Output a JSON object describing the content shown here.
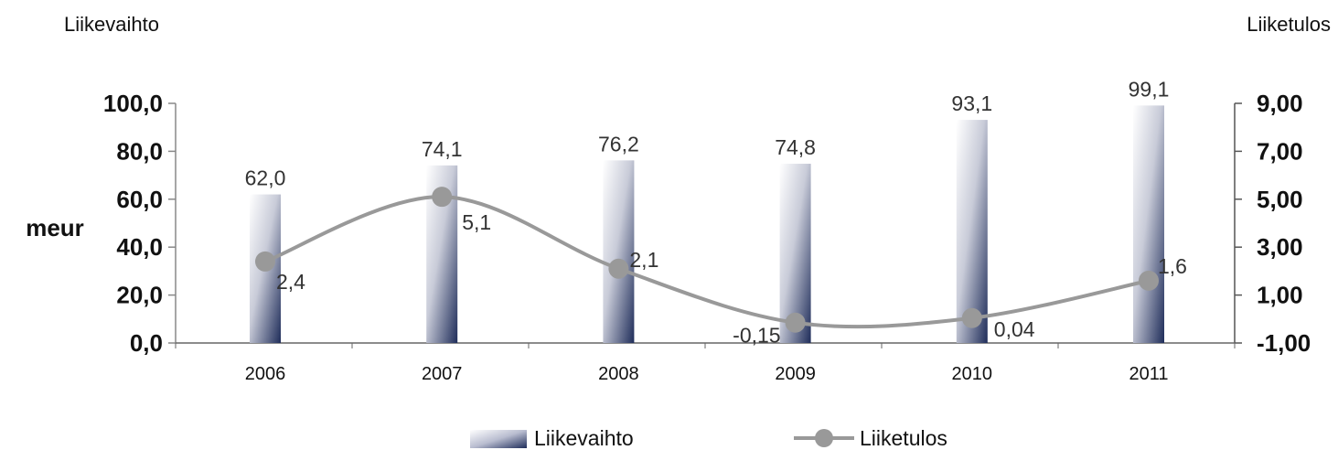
{
  "left_title": "Liikevaihto",
  "right_title": "Liiketulos",
  "chart_data": {
    "type": "bar",
    "categories": [
      "2006",
      "2007",
      "2008",
      "2009",
      "2010",
      "2011"
    ],
    "ylabel": "meur",
    "ylim": [
      0,
      100
    ],
    "y2lim": [
      -1,
      9
    ],
    "yticks": [
      "0,0",
      "20,0",
      "40,0",
      "60,0",
      "80,0",
      "100,0"
    ],
    "y2ticks": [
      "-1,00",
      "1,00",
      "3,00",
      "5,00",
      "7,00",
      "9,00"
    ],
    "legend_position": "bottom",
    "series": [
      {
        "name": "Liikevaihto",
        "type": "bar",
        "axis": "left",
        "values": [
          62.0,
          74.1,
          76.2,
          74.8,
          93.1,
          99.1
        ],
        "labels": [
          "62,0",
          "74,1",
          "76,2",
          "74,8",
          "93,1",
          "99,1"
        ],
        "color": "#1f2d5a"
      },
      {
        "name": "Liiketulos",
        "type": "line",
        "axis": "right",
        "values": [
          2.4,
          5.1,
          2.1,
          -0.15,
          0.04,
          1.6
        ],
        "labels": [
          "2,4",
          "5,1",
          "2,1",
          "-0,15",
          "0,04",
          "1,6"
        ],
        "color": "#999999"
      }
    ]
  }
}
